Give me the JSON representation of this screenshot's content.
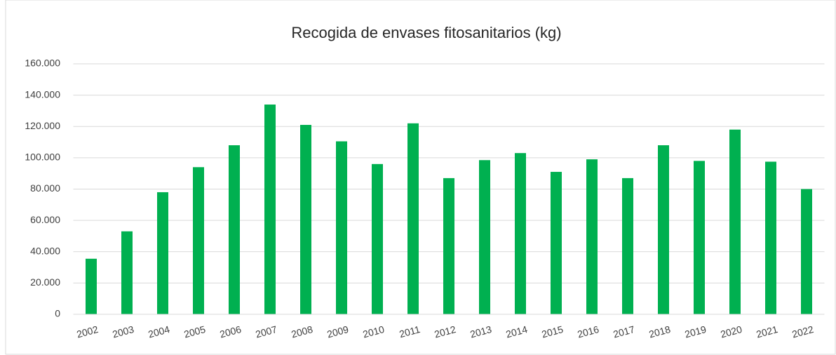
{
  "chart_data": {
    "type": "bar",
    "title": "Recogida de envases fitosanitarios (kg)",
    "categories": [
      "2002",
      "2003",
      "2004",
      "2005",
      "2006",
      "2007",
      "2008",
      "2009",
      "2010",
      "2011",
      "2012",
      "2013",
      "2014",
      "2015",
      "2016",
      "2017",
      "2018",
      "2019",
      "2020",
      "2021",
      "2022"
    ],
    "values": [
      35500,
      53000,
      78000,
      94000,
      108000,
      134000,
      121000,
      110500,
      96000,
      122000,
      87000,
      98500,
      103000,
      91000,
      99000,
      87000,
      108000,
      98000,
      118000,
      97500,
      80000
    ],
    "color": "#00b050",
    "ylim": [
      0,
      160000
    ],
    "yticks": [
      0,
      {
        "value": 20000,
        "label": "20.000"
      },
      {
        "value": 40000,
        "label": "40.000"
      },
      {
        "value": 60000,
        "label": "60.000"
      },
      {
        "value": 80000,
        "label": "80.000"
      },
      {
        "value": 100000,
        "label": "100.000"
      },
      {
        "value": 120000,
        "label": "120.000"
      },
      {
        "value": 140000,
        "label": "140.000"
      },
      {
        "value": 160000,
        "label": "160.000"
      }
    ],
    "grid": true
  }
}
